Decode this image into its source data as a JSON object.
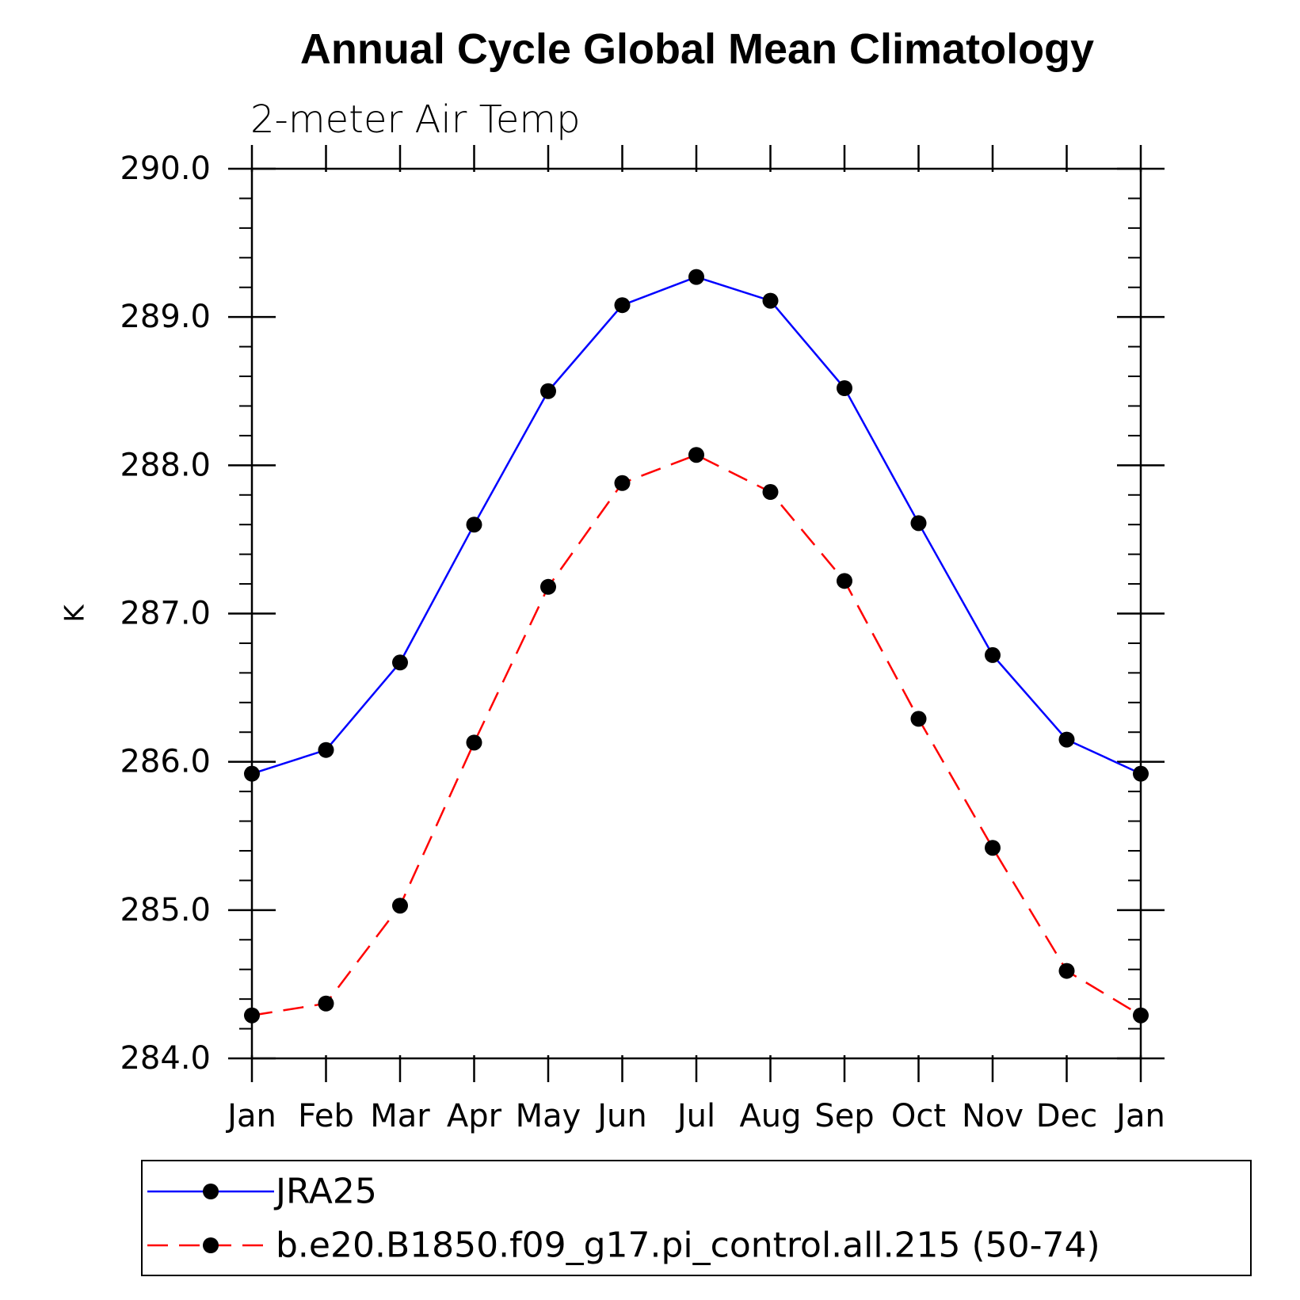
{
  "chart_data": {
    "type": "line",
    "title": "Annual Cycle Global Mean Climatology",
    "subtitle": "2-meter Air Temp",
    "ylabel": "K",
    "xlabel": "",
    "ylim": [
      284.0,
      290.0
    ],
    "yticks": [
      "284.0",
      "285.0",
      "286.0",
      "287.0",
      "288.0",
      "289.0",
      "290.0"
    ],
    "categories": [
      "Jan",
      "Feb",
      "Mar",
      "Apr",
      "May",
      "Jun",
      "Jul",
      "Aug",
      "Sep",
      "Oct",
      "Nov",
      "Dec",
      "Jan"
    ],
    "grid": false,
    "legend_position": "bottom",
    "series": [
      {
        "name": "JRA25",
        "color": "#0000ff",
        "dashed": false,
        "values": [
          285.92,
          286.08,
          286.67,
          287.6,
          288.5,
          289.08,
          289.27,
          289.11,
          288.52,
          287.61,
          286.72,
          286.15,
          285.92
        ]
      },
      {
        "name": "b.e20.B1850.f09_g17.pi_control.all.215 (50-74)",
        "color": "#ff0000",
        "dashed": true,
        "values": [
          284.29,
          284.37,
          285.03,
          286.13,
          287.18,
          287.88,
          288.07,
          287.82,
          287.22,
          286.29,
          285.42,
          284.59,
          284.29
        ]
      }
    ]
  }
}
